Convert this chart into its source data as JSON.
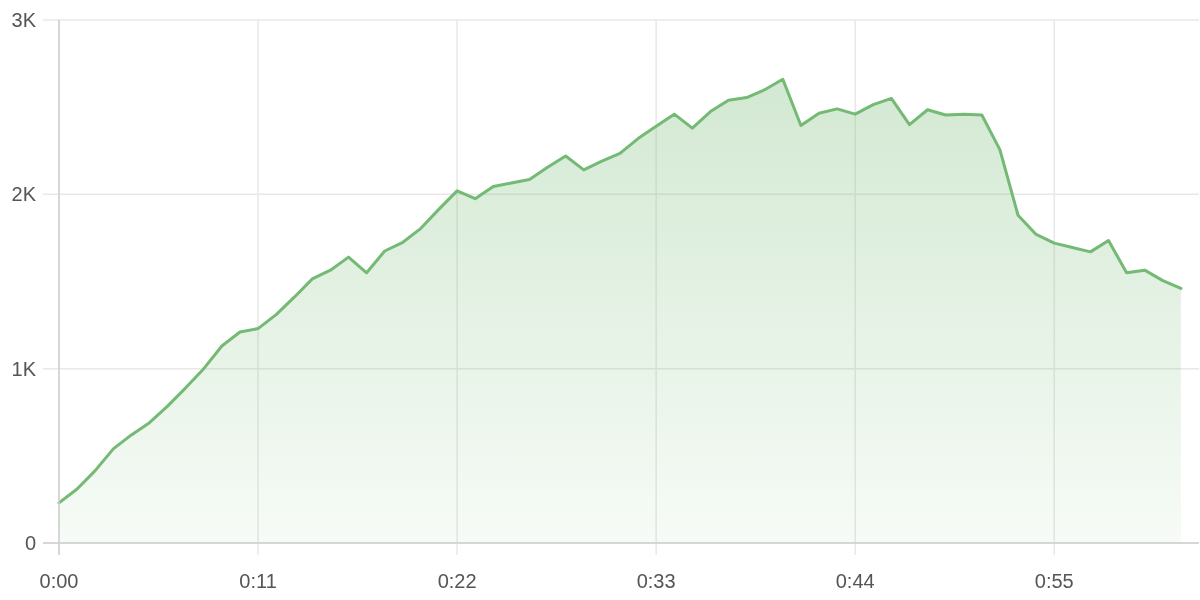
{
  "chart_data": {
    "type": "area",
    "x": [
      0,
      1,
      2,
      3,
      4,
      5,
      6,
      7,
      8,
      9,
      10,
      11,
      12,
      13,
      14,
      15,
      16,
      17,
      18,
      19,
      20,
      21,
      22,
      23,
      24,
      25,
      26,
      27,
      28,
      29,
      30,
      31,
      32,
      33,
      34,
      35,
      36,
      37,
      38,
      39,
      40,
      41,
      42,
      43,
      44,
      45,
      46,
      47,
      48,
      49,
      50,
      51,
      52,
      53,
      54,
      55,
      56,
      57,
      58,
      59,
      60,
      61,
      62
    ],
    "values": [
      230,
      310,
      415,
      540,
      620,
      690,
      785,
      890,
      1000,
      1130,
      1210,
      1230,
      1310,
      1410,
      1515,
      1565,
      1640,
      1550,
      1675,
      1725,
      1805,
      1915,
      2020,
      1975,
      2045,
      2065,
      2085,
      2155,
      2220,
      2140,
      2190,
      2235,
      2320,
      2390,
      2460,
      2380,
      2475,
      2540,
      2555,
      2600,
      2660,
      2395,
      2465,
      2490,
      2460,
      2515,
      2550,
      2400,
      2485,
      2455,
      2460,
      2455,
      2255,
      1880,
      1770,
      1720,
      1695,
      1670,
      1735,
      1550,
      1565,
      1505,
      1460
    ],
    "color": "#74b974",
    "xlim": [
      0,
      63
    ],
    "xticks": [
      {
        "value": 0,
        "label": "0:00"
      },
      {
        "value": 11,
        "label": "0:11"
      },
      {
        "value": 22,
        "label": "0:22"
      },
      {
        "value": 33,
        "label": "0:33"
      },
      {
        "value": 44,
        "label": "0:44"
      },
      {
        "value": 55,
        "label": "0:55"
      }
    ],
    "ylim": [
      0,
      3000
    ],
    "yticks": [
      0,
      {
        "value": 1000,
        "label": "1K"
      },
      {
        "value": 2000,
        "label": "2K"
      },
      {
        "value": 3000,
        "label": "3K"
      }
    ],
    "grid": true
  }
}
